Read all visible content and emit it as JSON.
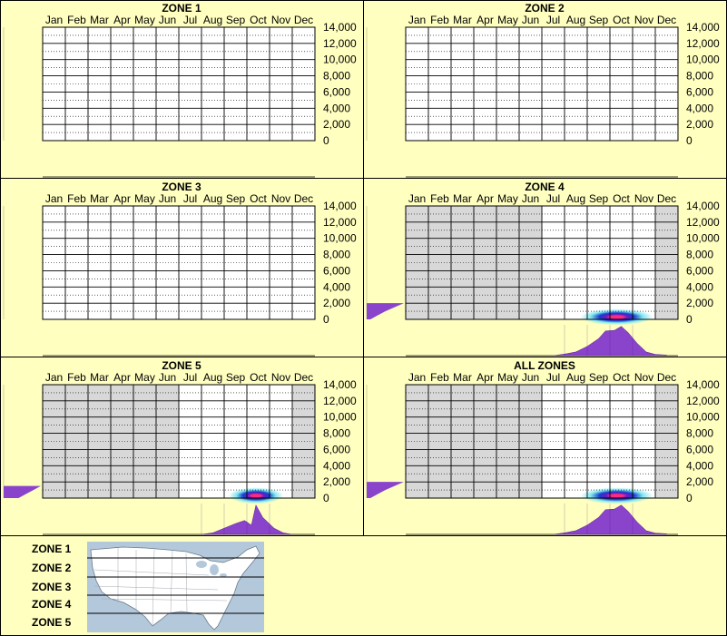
{
  "months": [
    "Jan",
    "Feb",
    "Mar",
    "Apr",
    "May",
    "Jun",
    "Jul",
    "Aug",
    "Sep",
    "Oct",
    "Nov",
    "Dec"
  ],
  "y_ticks": [
    "14,000",
    "12,000",
    "10,000",
    "8,000",
    "6,000",
    "4,000",
    "2,000",
    "0"
  ],
  "colors": {
    "background": "#ffffc0",
    "inactive_month": "#d8d8d8",
    "active_month": "#ffffff",
    "density": "#8a44cc",
    "heat_outer": "#7fe8f0",
    "heat_mid": "#1a3cd0",
    "heat_core": "#ff2a80"
  },
  "chart_data": [
    {
      "type": "heatmap",
      "title": "ZONE 1",
      "ylim": [
        0,
        14000
      ],
      "has_data": false,
      "active_months": [],
      "left_density": [],
      "bottom_density": []
    },
    {
      "type": "heatmap",
      "title": "ZONE 2",
      "ylim": [
        0,
        14000
      ],
      "has_data": false,
      "active_months": [],
      "left_density": [],
      "bottom_density": []
    },
    {
      "type": "heatmap",
      "title": "ZONE 3",
      "ylim": [
        0,
        14000
      ],
      "has_data": false,
      "active_months": [],
      "left_density": [],
      "bottom_density": []
    },
    {
      "type": "heatmap",
      "title": "ZONE 4",
      "ylim": [
        0,
        14000
      ],
      "has_data": true,
      "active_months": [
        "Jul",
        "Aug",
        "Sep",
        "Oct",
        "Nov"
      ],
      "hotspot": {
        "month": 9.3,
        "value": 300,
        "spread_months": 1.6
      },
      "left_density": [
        [
          0,
          0.1
        ],
        [
          500,
          0.3
        ],
        [
          1000,
          0.5
        ],
        [
          1500,
          0.75
        ],
        [
          2000,
          1.0
        ]
      ],
      "bottom_density": [
        [
          6.5,
          0
        ],
        [
          7.0,
          0.05
        ],
        [
          7.5,
          0.12
        ],
        [
          8.0,
          0.3
        ],
        [
          8.5,
          0.55
        ],
        [
          8.8,
          0.8
        ],
        [
          9.2,
          0.82
        ],
        [
          9.5,
          0.95
        ],
        [
          9.8,
          0.75
        ],
        [
          10.2,
          0.4
        ],
        [
          10.6,
          0.12
        ],
        [
          11.0,
          0.04
        ],
        [
          11.5,
          0.02
        ]
      ]
    },
    {
      "type": "heatmap",
      "title": "ZONE 5",
      "ylim": [
        0,
        14000
      ],
      "has_data": true,
      "active_months": [
        "Jul",
        "Aug",
        "Sep",
        "Oct",
        "Nov"
      ],
      "hotspot": {
        "month": 9.4,
        "value": 300,
        "spread_months": 1.2
      },
      "left_density": [
        [
          0,
          0.4
        ],
        [
          500,
          0.6
        ],
        [
          1000,
          0.8
        ],
        [
          1500,
          1.0
        ]
      ],
      "bottom_density": [
        [
          7.0,
          0
        ],
        [
          7.5,
          0.05
        ],
        [
          8.0,
          0.2
        ],
        [
          8.5,
          0.35
        ],
        [
          8.9,
          0.45
        ],
        [
          9.2,
          0.3
        ],
        [
          9.4,
          0.95
        ],
        [
          9.7,
          0.55
        ],
        [
          10.2,
          0.2
        ],
        [
          10.6,
          0.05
        ],
        [
          11.0,
          0
        ]
      ]
    },
    {
      "type": "heatmap",
      "title": "ALL ZONES",
      "ylim": [
        0,
        14000
      ],
      "has_data": true,
      "active_months": [
        "Jul",
        "Aug",
        "Sep",
        "Oct",
        "Nov"
      ],
      "hotspot": {
        "month": 9.3,
        "value": 300,
        "spread_months": 1.6
      },
      "left_density": [
        [
          0,
          0.1
        ],
        [
          500,
          0.3
        ],
        [
          1000,
          0.5
        ],
        [
          1500,
          0.75
        ],
        [
          2000,
          1.0
        ]
      ],
      "bottom_density": [
        [
          6.5,
          0
        ],
        [
          7.0,
          0.05
        ],
        [
          7.5,
          0.12
        ],
        [
          8.0,
          0.3
        ],
        [
          8.5,
          0.55
        ],
        [
          8.8,
          0.8
        ],
        [
          9.2,
          0.82
        ],
        [
          9.5,
          0.95
        ],
        [
          9.8,
          0.75
        ],
        [
          10.2,
          0.4
        ],
        [
          10.6,
          0.12
        ],
        [
          11.0,
          0.04
        ],
        [
          11.5,
          0.02
        ]
      ]
    }
  ],
  "legend": {
    "zones": [
      "ZONE 1",
      "ZONE 2",
      "ZONE 3",
      "ZONE 4",
      "ZONE 5"
    ],
    "map_icon": "usa-map-thumbnail"
  }
}
